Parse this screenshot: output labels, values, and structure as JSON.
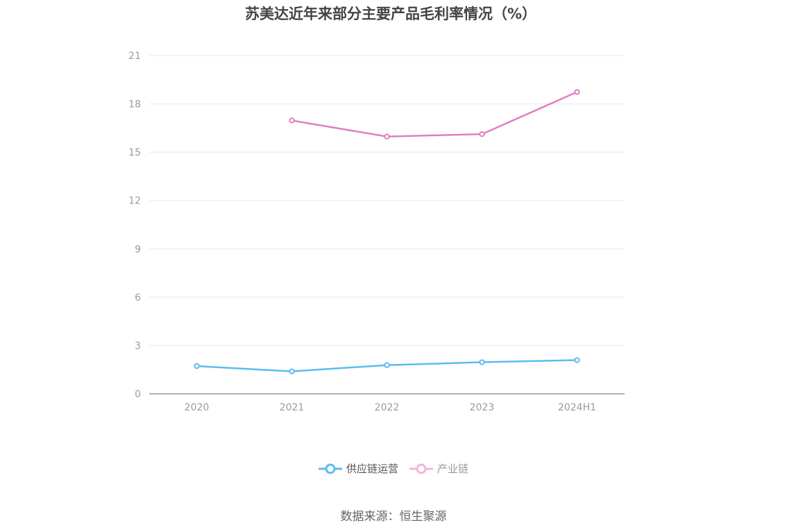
{
  "title": "苏美达近年来部分主要产品毛利率情况（%）",
  "source": "数据来源：恒生聚源",
  "colors": {
    "series1": "#5bbcf0",
    "series2": "#e07fc0",
    "grid": "#e6e8ee",
    "axis": "#999999"
  },
  "chart_data": {
    "type": "line",
    "title": "苏美达近年来部分主要产品毛利率情况（%）",
    "categories": [
      "2020",
      "2021",
      "2022",
      "2023",
      "2024H1"
    ],
    "ylim": [
      0,
      21
    ],
    "yticks": [
      0,
      3,
      6,
      9,
      12,
      15,
      18,
      21
    ],
    "grid": true,
    "legend_position": "bottom",
    "series": [
      {
        "name": "供应链运营",
        "color": "#5bbcf0",
        "values": [
          1.72,
          1.39,
          1.78,
          1.96,
          2.09
        ]
      },
      {
        "name": "产业链",
        "color": "#e07fc0",
        "values": [
          null,
          16.97,
          15.97,
          16.12,
          18.74
        ]
      }
    ]
  },
  "legend": [
    {
      "label": "供应链运营",
      "icon": "circle-line-icon",
      "color": "#5bbcf0"
    },
    {
      "label": "产业链",
      "icon": "circle-line-icon",
      "color": "#f0b5d8"
    }
  ]
}
